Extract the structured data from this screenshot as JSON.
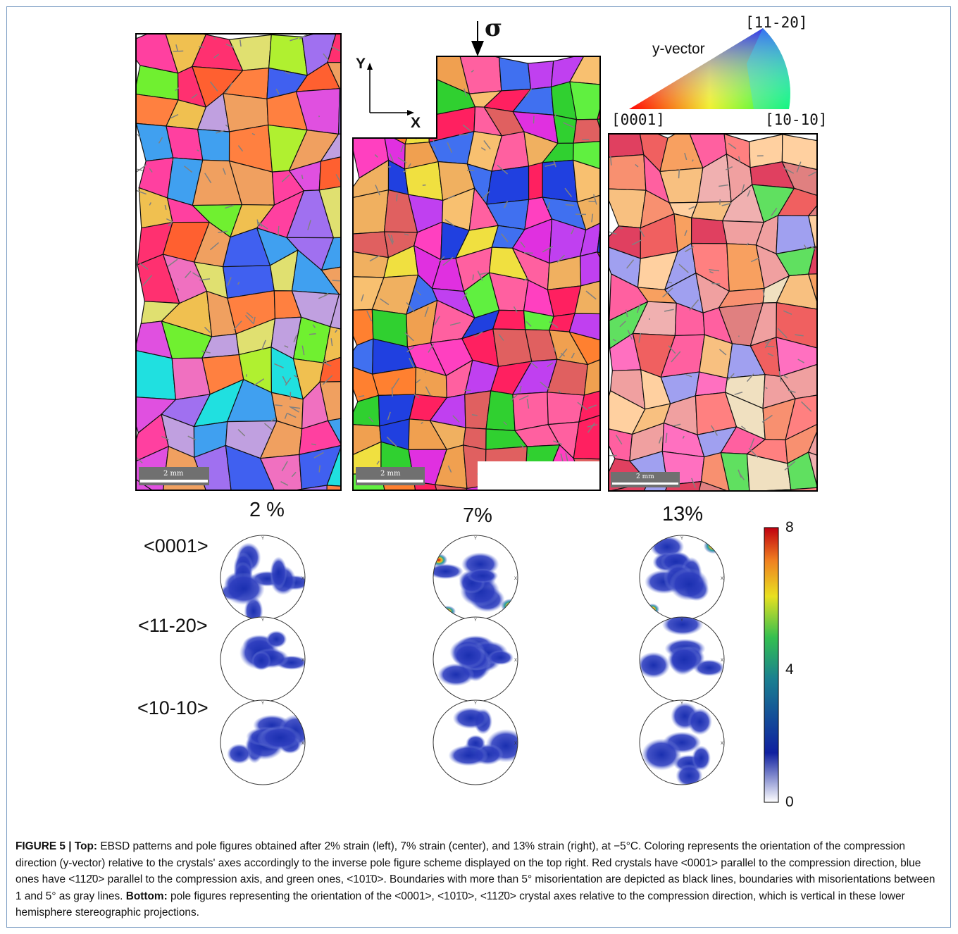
{
  "figure": {
    "strains": [
      "2 %",
      "7%",
      "13%"
    ],
    "pole_rows": [
      "<0001>",
      "<11-20>",
      "<10-10>"
    ],
    "pole_axis_labels": {
      "y": "Y",
      "x": "X"
    },
    "ipf_key": {
      "label": "y-vector",
      "corner_top": "[11-20]",
      "corner_left": "[0001]",
      "corner_right": "[10-10]"
    },
    "axes": {
      "y": "Y",
      "x": "X",
      "stress": "σ"
    },
    "scale_bar": "2 mm",
    "colorbar": {
      "max": "8",
      "mid": "4",
      "min": "0",
      "colors": [
        "#ffffff",
        "#1020a0",
        "#1a8090",
        "#34c050",
        "#e8e020",
        "#f08020",
        "#c00010"
      ]
    }
  },
  "caption": {
    "fig_label": "FIGURE 5 |",
    "top_label": "Top:",
    "top_text": "EBSD patterns and pole figures obtained after 2% strain (left), 7% strain (center), and 13% strain (right), at −5°C. Coloring represents the orientation of the compression direction (y-vector) relative to the crystals' axes accordingly to the inverse pole figure scheme displayed on the top right. Red crystals have <0001> parallel to the compression direction, blue ones have <112̄0> parallel to the compression axis, and green ones, <101̄0>. Boundaries with more than 5° misorientation are depicted as black lines, boundaries with misorientations between 1 and 5° as gray lines.",
    "bottom_label": "Bottom:",
    "bottom_text": "pole figures representing the orientation of the <0001>, <101̄0>, <112̄0> crystal axes relative to the compression direction, which is vertical in these lower hemisphere stereographic projections."
  }
}
